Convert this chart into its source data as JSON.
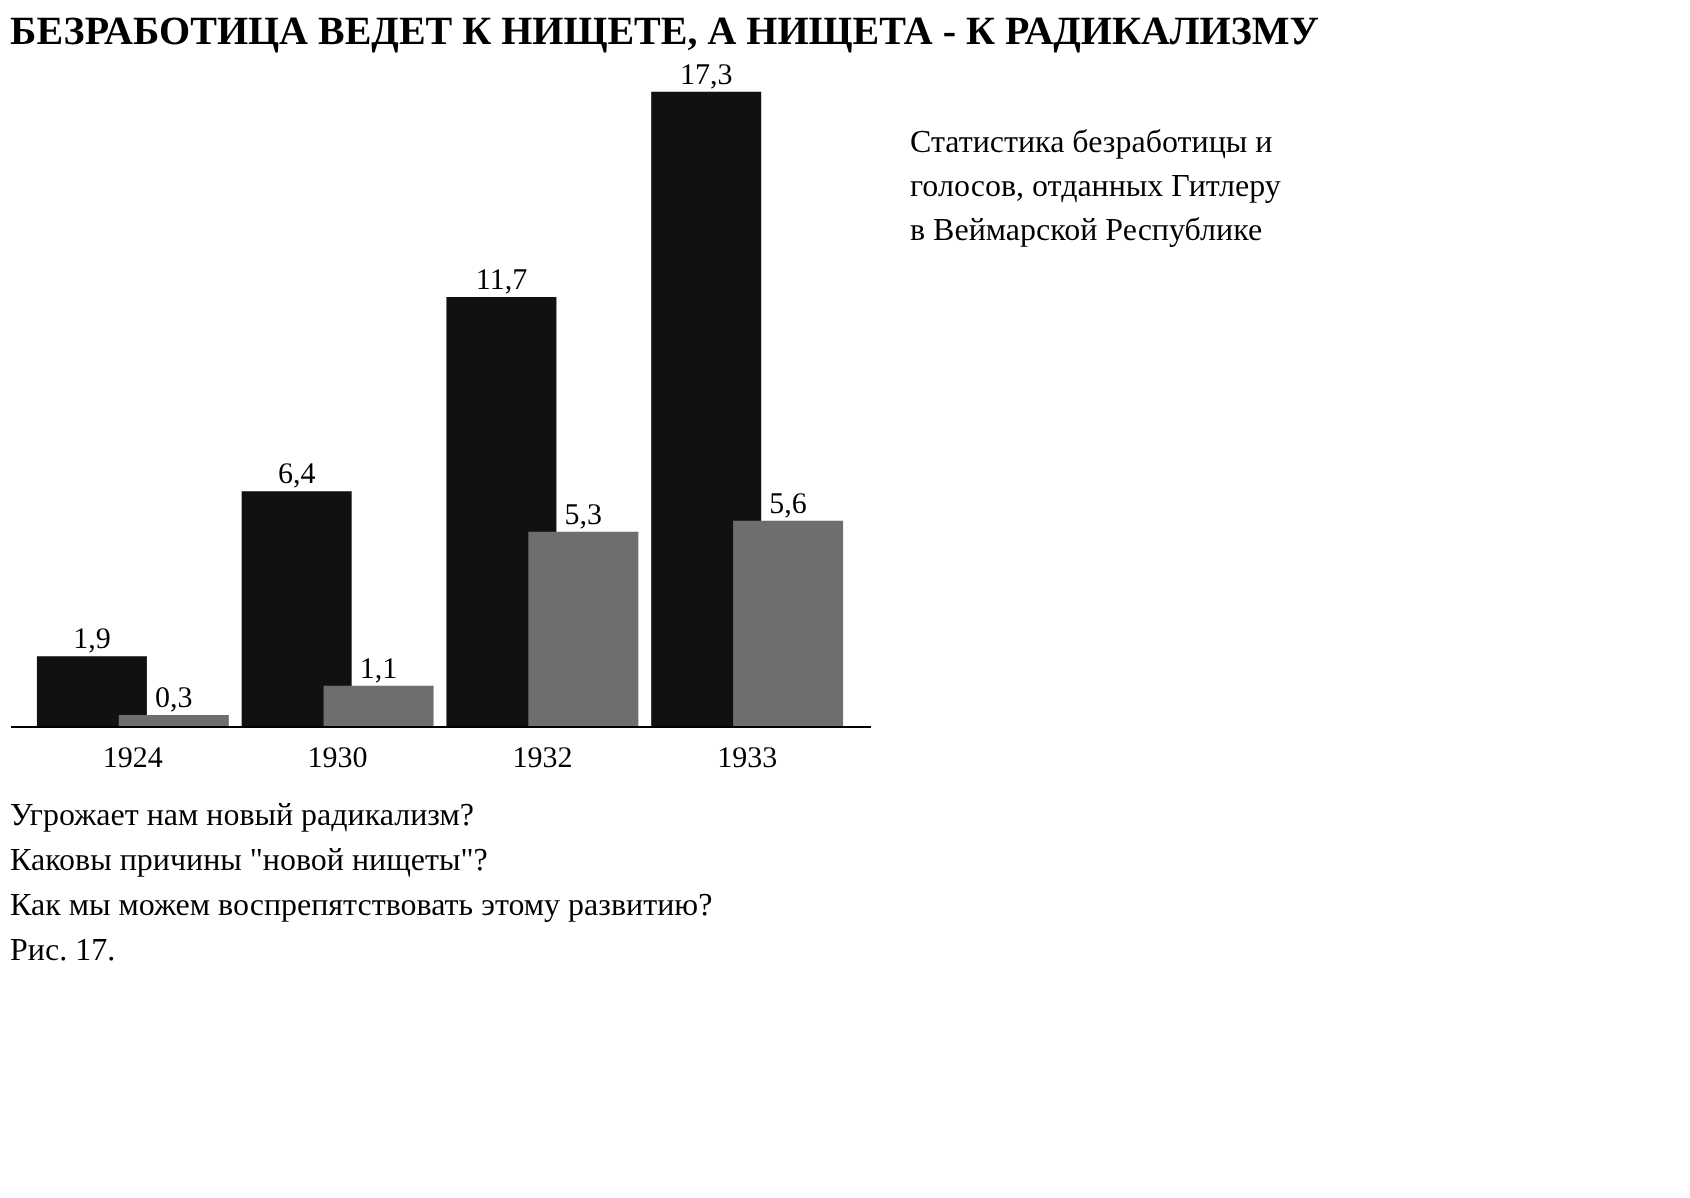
{
  "chart_data": {
    "type": "bar",
    "title": "БЕЗРАБОТИЦА ВЕДЕТ К НИЩЕТЕ, А НИЩЕТА - К РАДИКАЛИЗМУ",
    "categories": [
      "1924",
      "1930",
      "1932",
      "1933"
    ],
    "series": [
      {
        "color": "#111111",
        "values": [
          1.9,
          6.4,
          11.7,
          17.3
        ],
        "value_labels": [
          "1,9",
          "6,4",
          "11,7",
          "17,3"
        ]
      },
      {
        "color": "#6e6e6e",
        "values": [
          0.3,
          1.1,
          5.3,
          5.6
        ],
        "value_labels": [
          "0,3",
          "1,1",
          "5,3",
          "5,6"
        ]
      }
    ],
    "tick_labels": "x",
    "annotations": [
      "Статистика безработицы и голосов, отданных Гитлеру в Веймарской Республике",
      "Угрожает нам новый радикализм?",
      "Каковы причины \"новой нищеты\"?",
      "Как мы можем воспрепятствовать этому развитию?",
      "Рис. 17."
    ]
  }
}
